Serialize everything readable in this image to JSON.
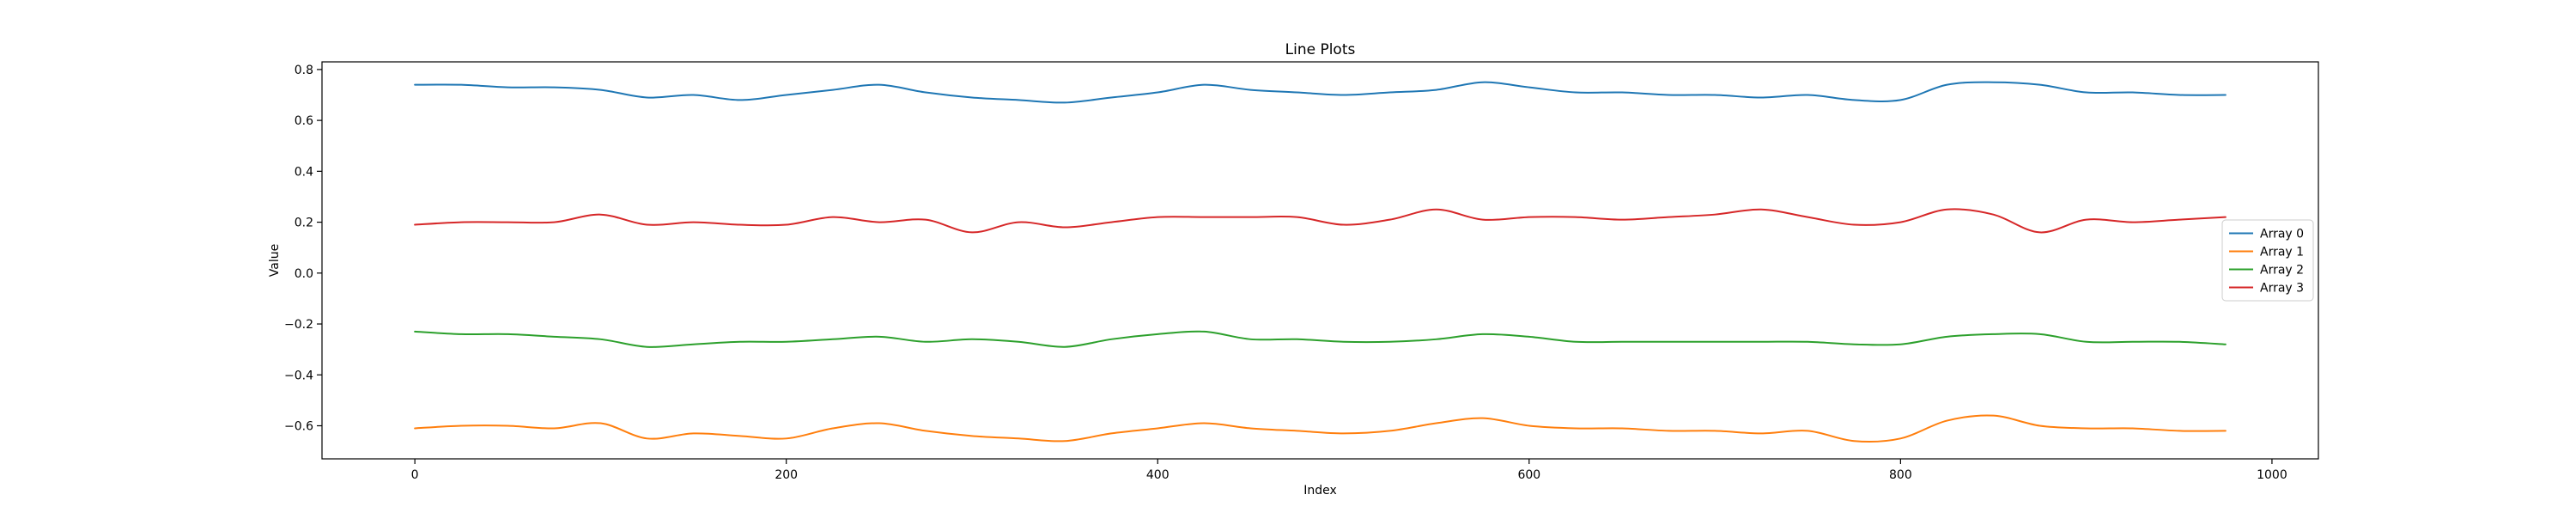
{
  "chart_data": {
    "type": "line",
    "title": "Line Plots",
    "xlabel": "Index",
    "ylabel": "Value",
    "xlim": [
      -50,
      1025
    ],
    "ylim": [
      -0.73,
      0.83
    ],
    "xticks": [
      0,
      200,
      400,
      600,
      800,
      1000
    ],
    "yticks": [
      -0.6,
      -0.4,
      -0.2,
      0.0,
      0.2,
      0.4,
      0.6,
      0.8
    ],
    "xtick_labels": [
      "0",
      "200",
      "400",
      "600",
      "800",
      "1000"
    ],
    "ytick_labels": [
      "−0.6",
      "−0.4",
      "−0.2",
      "0.0",
      "0.2",
      "0.4",
      "0.6",
      "0.8"
    ],
    "grid": false,
    "legend_position": "center-right",
    "x": [
      0,
      25,
      50,
      75,
      100,
      125,
      150,
      175,
      200,
      225,
      250,
      275,
      300,
      325,
      350,
      375,
      400,
      425,
      450,
      475,
      500,
      525,
      550,
      575,
      600,
      625,
      650,
      675,
      700,
      725,
      750,
      775,
      800,
      825,
      850,
      875,
      900,
      925,
      950,
      975
    ],
    "series": [
      {
        "name": "Array 0",
        "color": "#1f77b4",
        "values": [
          0.74,
          0.74,
          0.73,
          0.73,
          0.72,
          0.69,
          0.7,
          0.68,
          0.7,
          0.72,
          0.74,
          0.71,
          0.69,
          0.68,
          0.67,
          0.69,
          0.71,
          0.74,
          0.72,
          0.71,
          0.7,
          0.71,
          0.72,
          0.75,
          0.73,
          0.71,
          0.71,
          0.7,
          0.7,
          0.69,
          0.7,
          0.68,
          0.68,
          0.74,
          0.75,
          0.74,
          0.71,
          0.71,
          0.7,
          0.7
        ]
      },
      {
        "name": "Array 1",
        "color": "#ff7f0e",
        "values": [
          -0.61,
          -0.6,
          -0.6,
          -0.61,
          -0.59,
          -0.65,
          -0.63,
          -0.64,
          -0.65,
          -0.61,
          -0.59,
          -0.62,
          -0.64,
          -0.65,
          -0.66,
          -0.63,
          -0.61,
          -0.59,
          -0.61,
          -0.62,
          -0.63,
          -0.62,
          -0.59,
          -0.57,
          -0.6,
          -0.61,
          -0.61,
          -0.62,
          -0.62,
          -0.63,
          -0.62,
          -0.66,
          -0.65,
          -0.58,
          -0.56,
          -0.6,
          -0.61,
          -0.61,
          -0.62,
          -0.62
        ]
      },
      {
        "name": "Array 2",
        "color": "#2ca02c",
        "values": [
          -0.23,
          -0.24,
          -0.24,
          -0.25,
          -0.26,
          -0.29,
          -0.28,
          -0.27,
          -0.27,
          -0.26,
          -0.25,
          -0.27,
          -0.26,
          -0.27,
          -0.29,
          -0.26,
          -0.24,
          -0.23,
          -0.26,
          -0.26,
          -0.27,
          -0.27,
          -0.26,
          -0.24,
          -0.25,
          -0.27,
          -0.27,
          -0.27,
          -0.27,
          -0.27,
          -0.27,
          -0.28,
          -0.28,
          -0.25,
          -0.24,
          -0.24,
          -0.27,
          -0.27,
          -0.27,
          -0.28
        ]
      },
      {
        "name": "Array 3",
        "color": "#d62728",
        "values": [
          0.19,
          0.2,
          0.2,
          0.2,
          0.23,
          0.19,
          0.2,
          0.19,
          0.19,
          0.22,
          0.2,
          0.21,
          0.16,
          0.2,
          0.18,
          0.2,
          0.22,
          0.22,
          0.22,
          0.22,
          0.19,
          0.21,
          0.25,
          0.21,
          0.22,
          0.22,
          0.21,
          0.22,
          0.23,
          0.25,
          0.22,
          0.19,
          0.2,
          0.25,
          0.23,
          0.16,
          0.21,
          0.2,
          0.21,
          0.22
        ]
      }
    ]
  }
}
